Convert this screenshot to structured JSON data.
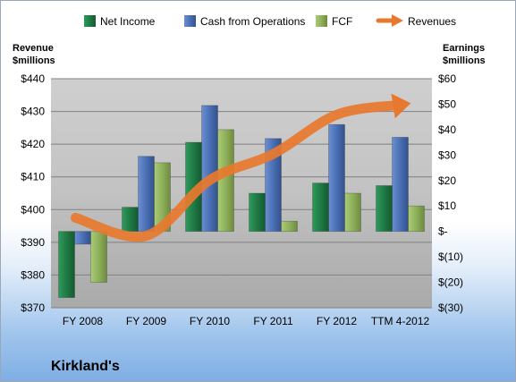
{
  "chart_data": {
    "type": "bar",
    "title": "Kirkland's",
    "categories": [
      "FY 2008",
      "FY 2009",
      "FY 2010",
      "FY 2011",
      "FY 2012",
      "TTM 4-2012"
    ],
    "left_axis": {
      "label_line1": "Revenue",
      "label_line2": "$millions",
      "ylim": [
        370,
        440
      ],
      "ticks": [
        {
          "value": 440,
          "label": "$440"
        },
        {
          "value": 430,
          "label": "$430"
        },
        {
          "value": 420,
          "label": "$420"
        },
        {
          "value": 410,
          "label": "$410"
        },
        {
          "value": 400,
          "label": "$400"
        },
        {
          "value": 390,
          "label": "$390"
        },
        {
          "value": 380,
          "label": "$380"
        },
        {
          "value": 370,
          "label": "$370"
        }
      ]
    },
    "right_axis": {
      "label_line1": "Earnings",
      "label_line2": "$millions",
      "ylim": [
        -30,
        60
      ],
      "ticks": [
        {
          "value": 60,
          "label": "$60"
        },
        {
          "value": 50,
          "label": "$50"
        },
        {
          "value": 40,
          "label": "$40"
        },
        {
          "value": 30,
          "label": "$30"
        },
        {
          "value": 20,
          "label": "$20"
        },
        {
          "value": 10,
          "label": "$10"
        },
        {
          "value": 0,
          "label": "$-"
        },
        {
          "value": -10,
          "label": "$(10)"
        },
        {
          "value": -20,
          "label": "$(20)"
        },
        {
          "value": -30,
          "label": "$(30)"
        }
      ]
    },
    "series": [
      {
        "name": "Net Income",
        "axis": "right",
        "color": "#1f7a45",
        "values": [
          -26,
          9.5,
          35,
          15,
          19,
          18
        ]
      },
      {
        "name": "Cash from Operations",
        "axis": "right",
        "color": "#4a6fb5",
        "values": [
          -5,
          29.5,
          49.5,
          36.5,
          42,
          37
        ]
      },
      {
        "name": "FCF",
        "axis": "right",
        "color": "#8fb05a",
        "values": [
          -20,
          27,
          40,
          4,
          15,
          10
        ]
      },
      {
        "name": "Revenues",
        "axis": "left",
        "type": "line",
        "color": "#e8782e",
        "values": [
          397.5,
          392,
          409,
          417,
          429,
          432
        ]
      }
    ],
    "grid": true,
    "legend_position": "top"
  },
  "colors": {
    "plot_background": "#c0c0c0",
    "gridline": "#808080",
    "arrow": "#e8782e"
  }
}
